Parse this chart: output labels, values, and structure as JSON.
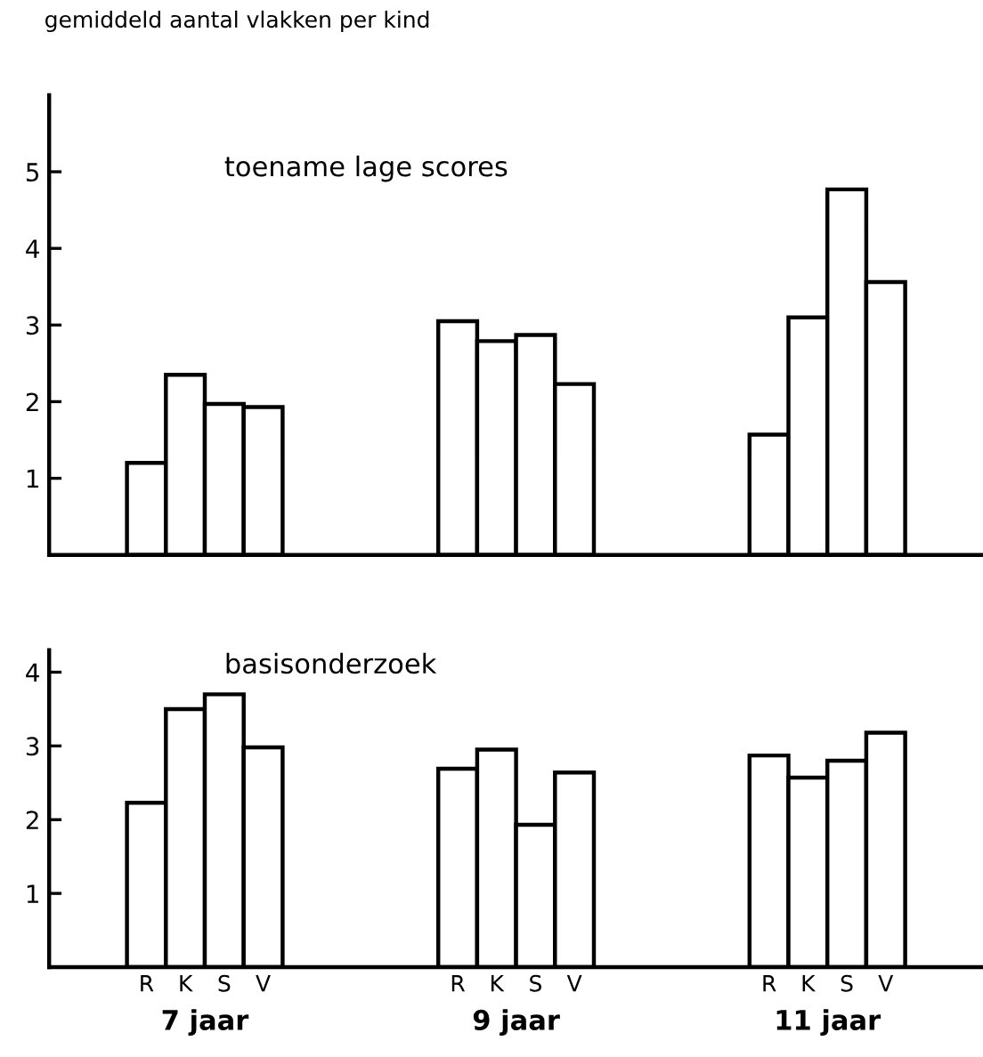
{
  "chart_data": [
    {
      "type": "bar",
      "title": "toename lage scores",
      "ylabel": "gemiddeld aantal vlakken per kind",
      "categories": [
        null,
        null,
        null,
        null,
        null,
        null,
        null,
        null,
        null,
        null,
        null,
        null,
        null,
        null,
        null,
        null,
        null,
        null,
        null,
        null,
        null,
        null,
        null,
        null
      ],
      "values": [
        null,
        null,
        1.2,
        2.35,
        1.97,
        1.93,
        null,
        null,
        null,
        null,
        3.05,
        2.79,
        2.87,
        2.23,
        null,
        null,
        null,
        null,
        1.57,
        3.1,
        4.77,
        3.56,
        null,
        null
      ],
      "color": "#ffffff",
      "ylim": [
        0,
        6
      ],
      "yticks": [
        1,
        2,
        3,
        4,
        5
      ],
      "grid": false,
      "tick_labels": "y"
    },
    {
      "type": "bar",
      "title": "basisonderzoek",
      "categories": [
        null,
        null,
        "R",
        "K",
        "S",
        "V",
        null,
        null,
        null,
        null,
        "R",
        "K",
        "S",
        "V",
        null,
        null,
        null,
        null,
        "R",
        "K",
        "S",
        "V",
        null,
        null
      ],
      "values": [
        null,
        null,
        2.23,
        3.5,
        3.7,
        2.98,
        null,
        null,
        null,
        null,
        2.69,
        2.95,
        1.93,
        2.64,
        null,
        null,
        null,
        null,
        2.87,
        2.57,
        2.8,
        3.18,
        null,
        null
      ],
      "color": "#ffffff",
      "ylim": [
        0,
        4.3
      ],
      "yticks": [
        1,
        2,
        3,
        4
      ],
      "grid": false,
      "annotations": [
        "7 jaar",
        "9 jaar",
        "11 jaar"
      ]
    }
  ]
}
